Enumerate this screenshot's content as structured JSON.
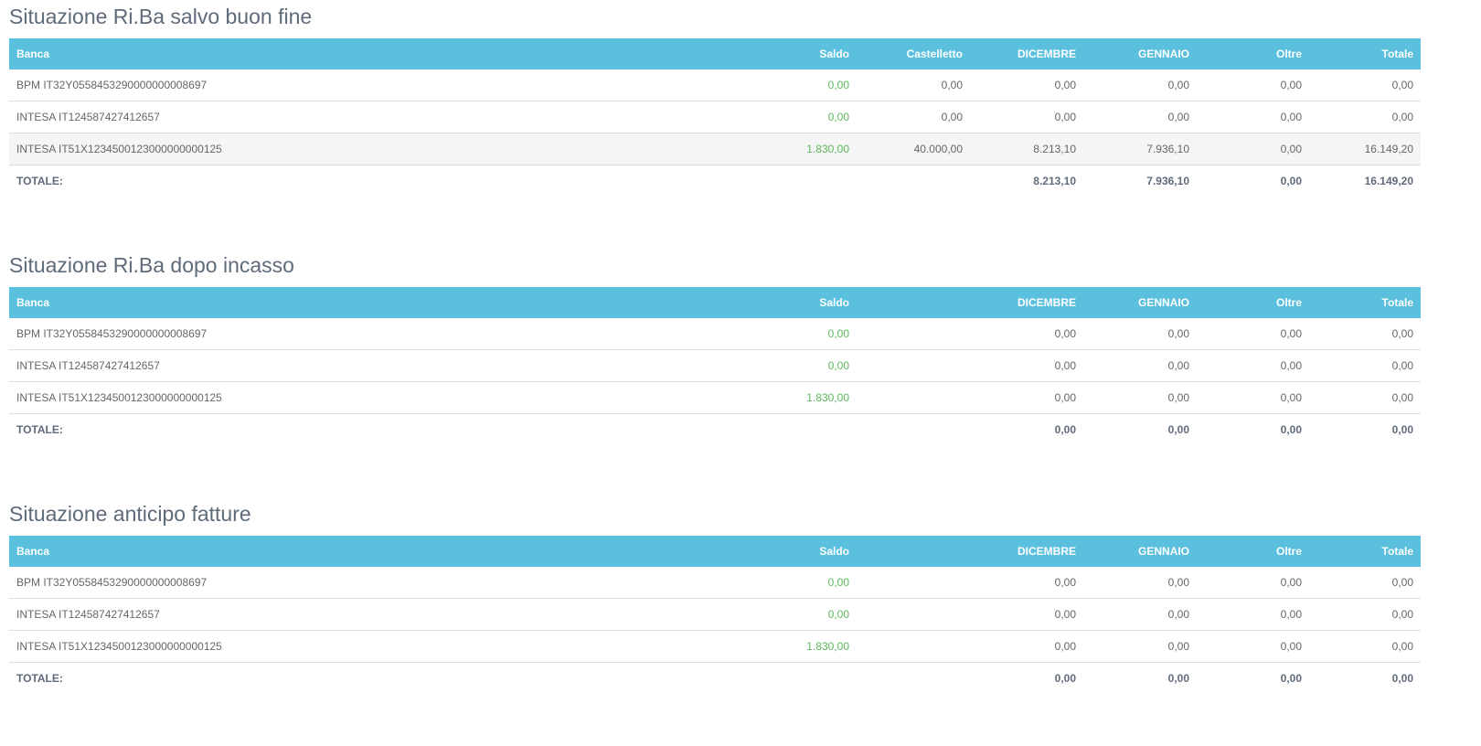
{
  "colors": {
    "header": "#5bc0de",
    "positive": "#5cb85c"
  },
  "sections": [
    {
      "title": "Situazione Ri.Ba salvo buon fine",
      "headers": [
        "Banca",
        "Saldo",
        "Castelletto",
        "DICEMBRE",
        "GENNAIO",
        "Oltre",
        "Totale"
      ],
      "rows": [
        [
          "BPM IT32Y0558453290000000008697",
          "0,00",
          "0,00",
          "0,00",
          "0,00",
          "0,00",
          "0,00"
        ],
        [
          "INTESA IT124587427412657",
          "0,00",
          "0,00",
          "0,00",
          "0,00",
          "0,00",
          "0,00"
        ],
        [
          "INTESA IT51X1234500123000000000125",
          "1.830,00",
          "40.000,00",
          "8.213,10",
          "7.936,10",
          "0,00",
          "16.149,20"
        ]
      ],
      "total": [
        "TOTALE:",
        "",
        "",
        "8.213,10",
        "7.936,10",
        "0,00",
        "16.149,20"
      ]
    },
    {
      "title": "Situazione Ri.Ba dopo incasso",
      "headers": [
        "Banca",
        "Saldo",
        "",
        "DICEMBRE",
        "GENNAIO",
        "Oltre",
        "Totale"
      ],
      "rows": [
        [
          "BPM IT32Y0558453290000000008697",
          "0,00",
          "",
          "0,00",
          "0,00",
          "0,00",
          "0,00"
        ],
        [
          "INTESA IT124587427412657",
          "0,00",
          "",
          "0,00",
          "0,00",
          "0,00",
          "0,00"
        ],
        [
          "INTESA IT51X1234500123000000000125",
          "1.830,00",
          "",
          "0,00",
          "0,00",
          "0,00",
          "0,00"
        ]
      ],
      "total": [
        "TOTALE:",
        "",
        "",
        "0,00",
        "0,00",
        "0,00",
        "0,00"
      ]
    },
    {
      "title": "Situazione anticipo fatture",
      "headers": [
        "Banca",
        "Saldo",
        "",
        "DICEMBRE",
        "GENNAIO",
        "Oltre",
        "Totale"
      ],
      "rows": [
        [
          "BPM IT32Y0558453290000000008697",
          "0,00",
          "",
          "0,00",
          "0,00",
          "0,00",
          "0,00"
        ],
        [
          "INTESA IT124587427412657",
          "0,00",
          "",
          "0,00",
          "0,00",
          "0,00",
          "0,00"
        ],
        [
          "INTESA IT51X1234500123000000000125",
          "1.830,00",
          "",
          "0,00",
          "0,00",
          "0,00",
          "0,00"
        ]
      ],
      "total": [
        "TOTALE:",
        "",
        "",
        "0,00",
        "0,00",
        "0,00",
        "0,00"
      ]
    }
  ]
}
